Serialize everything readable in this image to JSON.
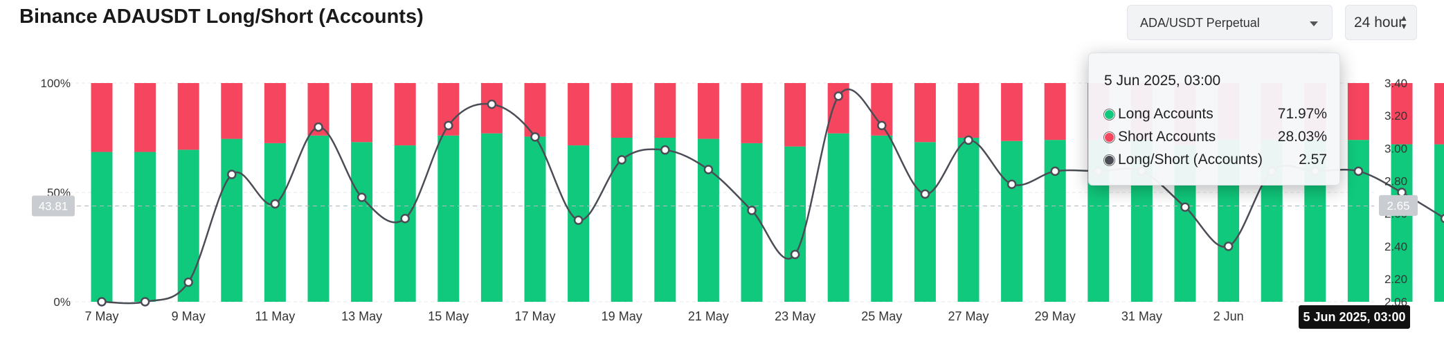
{
  "header": {
    "title": "Binance ADAUSDT Long/Short (Accounts)",
    "symbol_select": "ADA/USDT Perpetual",
    "interval_select": "24 hour"
  },
  "colors": {
    "long": "#10c97c",
    "short": "#f6455f",
    "line": "#4a4d55",
    "grid": "#e6e8eb"
  },
  "chart_data": {
    "type": "bar",
    "title": "Binance ADAUSDT Long/Short (Accounts)",
    "stacked": true,
    "x_ticks": [
      "7 May",
      "9 May",
      "11 May",
      "13 May",
      "15 May",
      "17 May",
      "19 May",
      "21 May",
      "23 May",
      "25 May",
      "27 May",
      "29 May",
      "31 May",
      "2 Jun"
    ],
    "y_left": {
      "ticks": [
        "0%",
        "50%",
        "100%"
      ],
      "range": [
        0,
        100
      ]
    },
    "y_right": {
      "ticks": [
        "2.06",
        "2.20",
        "2.40",
        "2.60",
        "2.80",
        "3.00",
        "3.20",
        "3.40"
      ],
      "range": [
        2.06,
        3.4
      ]
    },
    "crosshair": {
      "left_value": "43.81",
      "right_value": "2.65",
      "time": "5 Jun 2025, 03:00"
    },
    "series": [
      {
        "name": "Long Accounts",
        "type": "bar",
        "values": [
          68.5,
          68.5,
          69.5,
          74.5,
          72.5,
          76,
          73,
          71.5,
          76,
          77,
          75.5,
          71.5,
          75,
          75,
          74.5,
          72.5,
          71,
          77,
          76,
          73,
          75,
          73.5,
          74,
          74,
          74,
          71.5,
          74,
          74,
          74,
          74,
          72,
          71.97
        ]
      },
      {
        "name": "Short Accounts",
        "type": "bar",
        "values": [
          31.5,
          31.5,
          30.5,
          25.5,
          27.5,
          24,
          27,
          28.5,
          24,
          23,
          24.5,
          28.5,
          25,
          25,
          25.5,
          27.5,
          29,
          23,
          24,
          27,
          25,
          26.5,
          26,
          26,
          26,
          28.5,
          26,
          26,
          26,
          26,
          28,
          28.03
        ]
      },
      {
        "name": "Long/Short (Accounts)",
        "type": "line",
        "axis": "right",
        "values": [
          2.06,
          2.06,
          2.18,
          2.84,
          2.66,
          3.13,
          2.7,
          2.57,
          3.14,
          3.27,
          3.07,
          2.56,
          2.93,
          2.99,
          2.87,
          2.62,
          2.35,
          3.32,
          3.14,
          2.72,
          3.05,
          2.78,
          2.86,
          2.86,
          2.86,
          2.64,
          2.4,
          2.86,
          2.86,
          2.86,
          2.73,
          2.57
        ]
      }
    ]
  },
  "tooltip": {
    "date": "5 Jun 2025, 03:00",
    "rows": [
      {
        "label": "Long Accounts",
        "value": "71.97%",
        "color": "#10c97c"
      },
      {
        "label": "Short Accounts",
        "value": "28.03%",
        "color": "#f6455f"
      },
      {
        "label": "Long/Short (Accounts)",
        "value": "2.57",
        "color": "#4a4d55"
      }
    ]
  }
}
